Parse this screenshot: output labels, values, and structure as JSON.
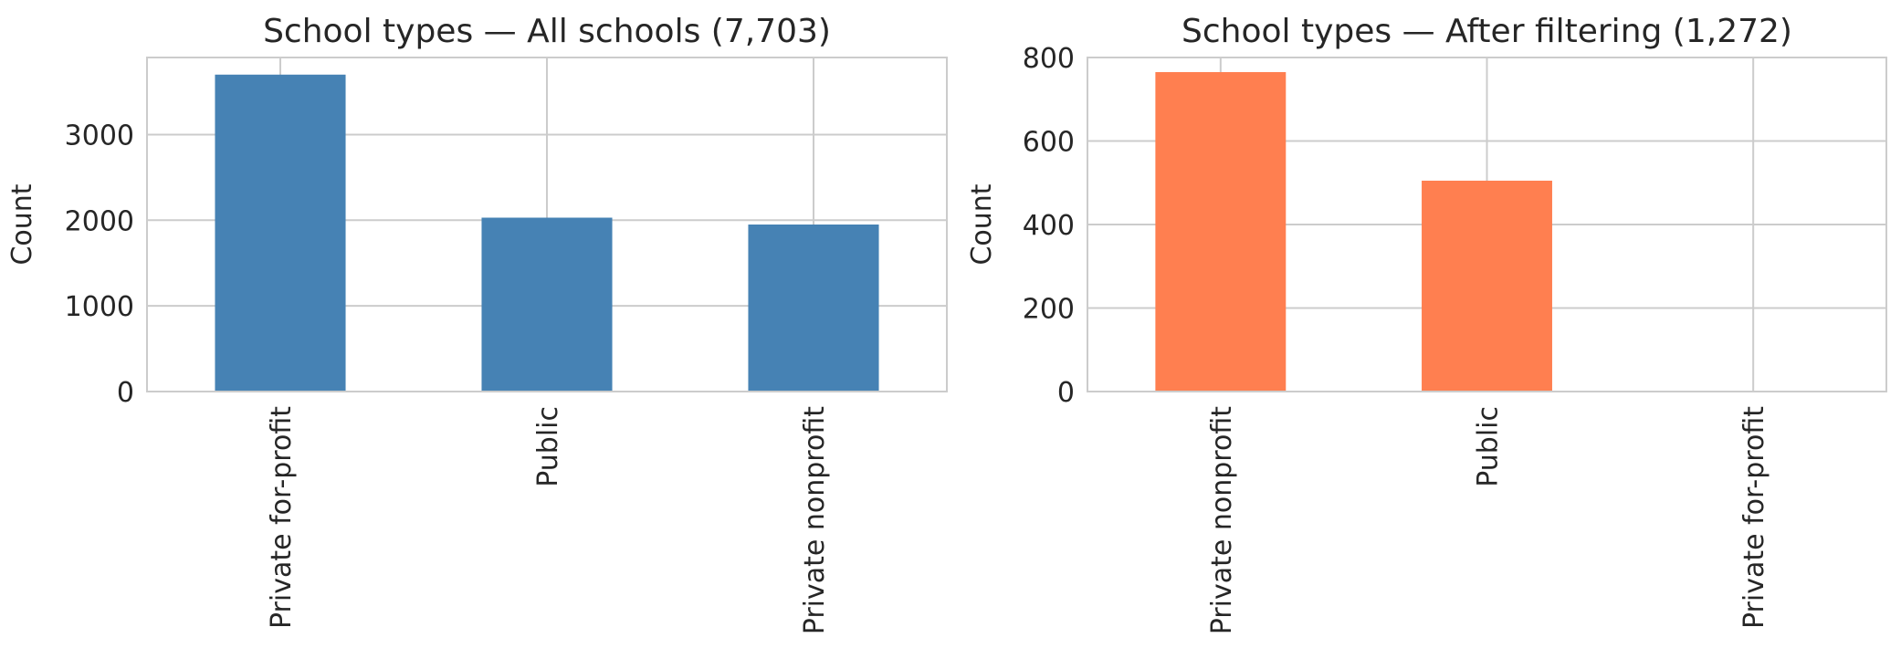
{
  "chart_data": [
    {
      "type": "bar",
      "title": "School types — All schools (7,703)",
      "xlabel": "",
      "ylabel": "Count",
      "categories": [
        "Private for-profit",
        "Public",
        "Private nonprofit"
      ],
      "values": [
        3700,
        2030,
        1950
      ],
      "ylim": [
        0,
        3900
      ],
      "yticks": [
        0,
        1000,
        2000,
        3000
      ],
      "color": "#4682b4",
      "grid": true,
      "legend": "none"
    },
    {
      "type": "bar",
      "title": "School types — After filtering (1,272)",
      "xlabel": "",
      "ylabel": "Count",
      "categories": [
        "Private nonprofit",
        "Public",
        "Private for-profit"
      ],
      "values": [
        765,
        505,
        2
      ],
      "ylim": [
        0,
        800
      ],
      "yticks": [
        0,
        200,
        400,
        600,
        800
      ],
      "color": "#ff7f50",
      "grid": true,
      "legend": "none"
    }
  ]
}
